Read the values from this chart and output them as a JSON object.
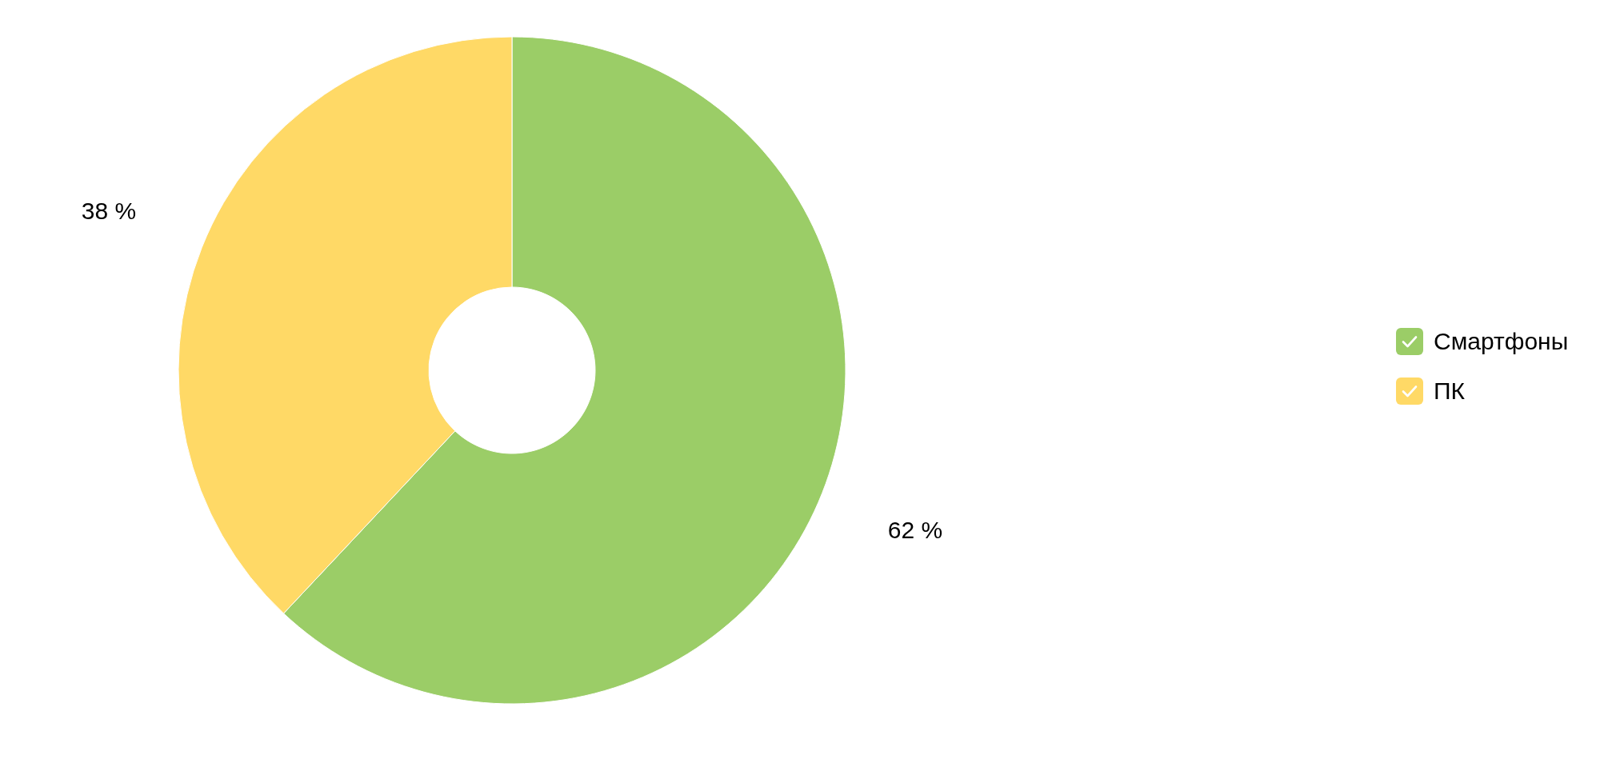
{
  "chart_data": {
    "type": "donut",
    "categories": [
      "Смартфоны",
      "ПК"
    ],
    "values": [
      62,
      38
    ],
    "colors": [
      "#9bcd67",
      "#ffd966"
    ],
    "value_labels": [
      "62 %",
      "38 %"
    ],
    "legend": "right"
  }
}
